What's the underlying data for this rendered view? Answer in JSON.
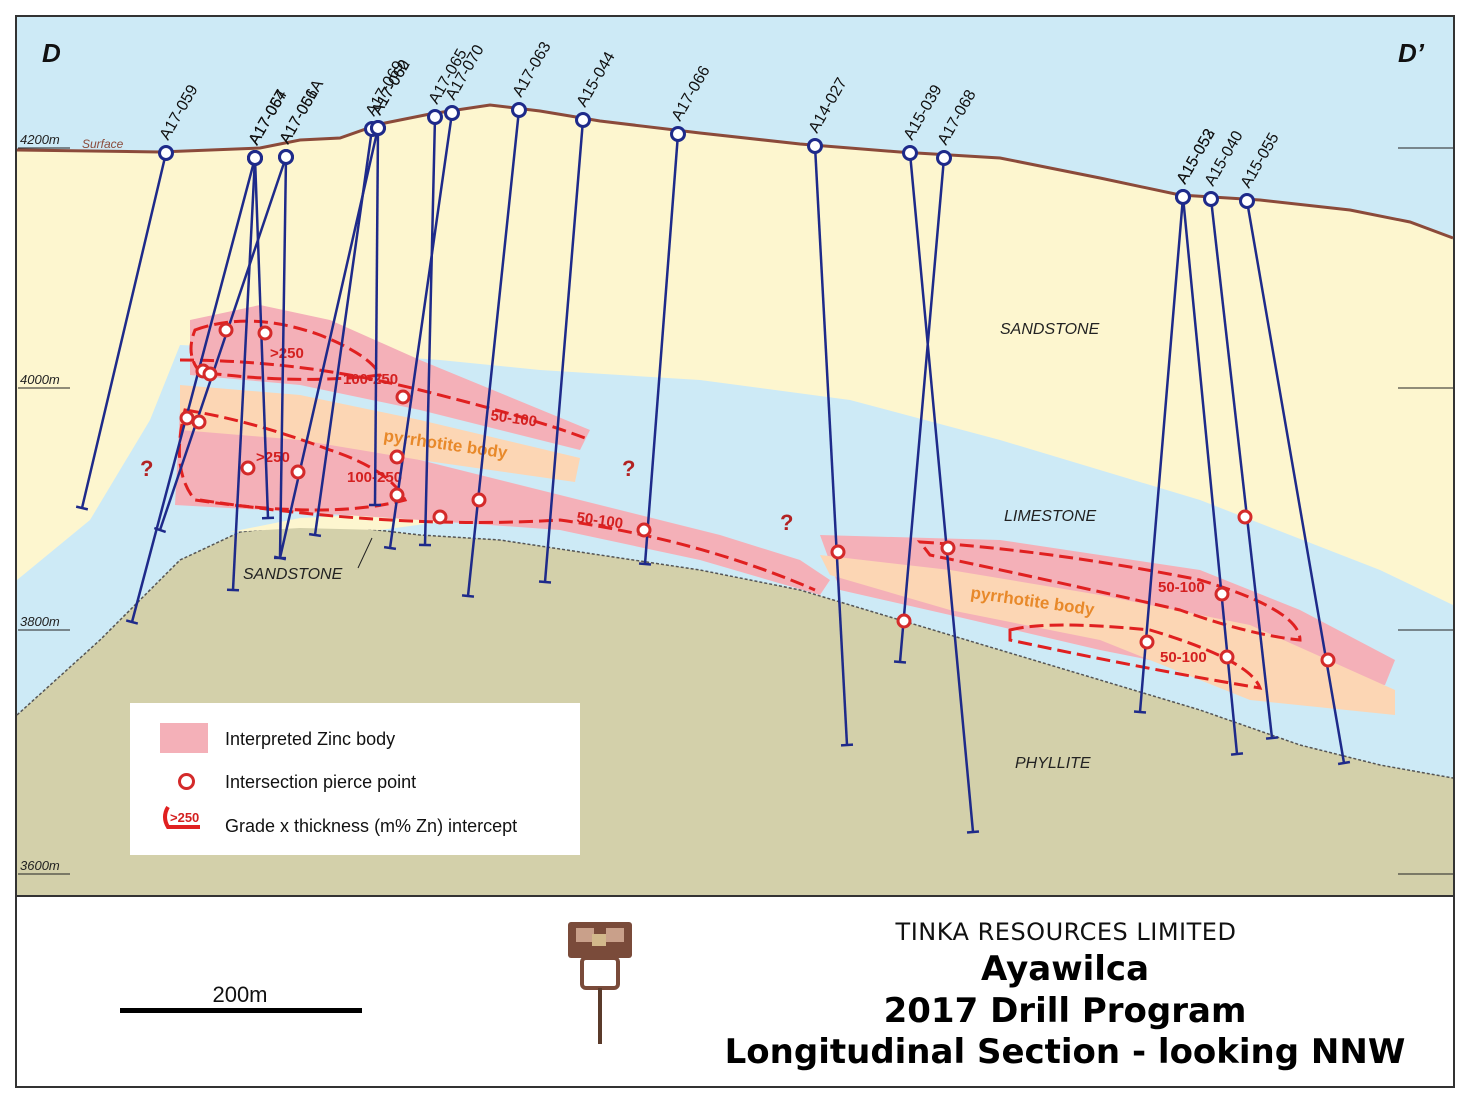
{
  "section": {
    "left_label": "D",
    "right_label": "D’",
    "surface_label": "Surface",
    "elevations": [
      "4200m",
      "4000m",
      "3800m",
      "3600m"
    ]
  },
  "rock_units": {
    "sandstone_upper": "SANDSTONE",
    "sandstone_lower": "SANDSTONE",
    "limestone": "LIMESTONE",
    "phyllite": "PHYLLITE"
  },
  "bodies": {
    "pyrrhotite_1": "pyrrhotite body",
    "pyrrhotite_2": "pyrrhotite body"
  },
  "grade_labels": [
    ">250",
    "100-250",
    "50-100",
    ">250",
    "100-250",
    "50-100",
    "50-100",
    "50-100"
  ],
  "question_marks": [
    "?",
    "?",
    "?"
  ],
  "drillholes": [
    "A17-059",
    "A17-064",
    "A17-057",
    "A17-067",
    "A17-061",
    "A17-056A",
    "A17-069",
    "A17-060",
    "A17-062",
    "A17-065",
    "A17-070",
    "A17-063",
    "A15-044",
    "A17-066",
    "A14-027",
    "A15-039",
    "A17-068",
    "A15-053",
    "A15-052",
    "A15-040",
    "A15-055"
  ],
  "legend": {
    "zinc_body": "Interpreted Zinc body",
    "pierce_point": "Intersection pierce point",
    "grade_thickness": "Grade x thickness (m% Zn) intercept",
    "grade_example": ">250"
  },
  "title_block": {
    "company": "TINKA RESOURCES LIMITED",
    "project": "Ayawilca",
    "program": "2017 Drill Program",
    "section_title": "Longitudinal Section - looking NNW",
    "scale": "200m"
  },
  "colors": {
    "sky": "#cdeaf6",
    "sandstone": "#fdf6cf",
    "limestone": "#c4e6f4",
    "phyllite": "#d3d0aa",
    "zinc_body": "#f4b0b8",
    "pyrrhotite": "#fcd6b4",
    "drillhole": "#1e2a8a",
    "grade_outline": "#e02020",
    "surface_line": "#8b4a3a"
  }
}
